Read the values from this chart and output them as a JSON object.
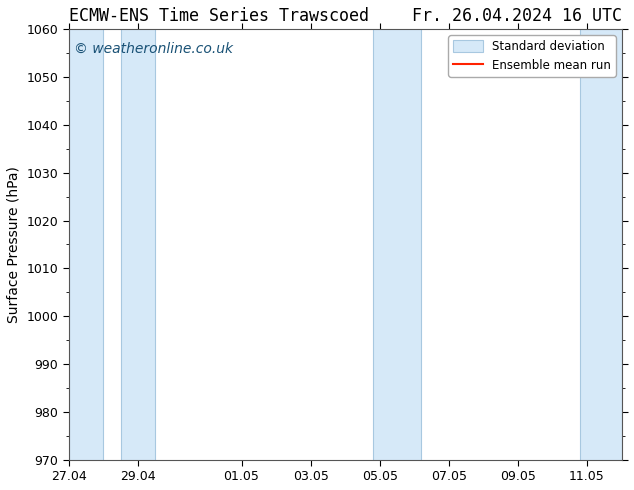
{
  "title_left": "ECMW-ENS Time Series Trawscoed",
  "title_right": "Fr. 26.04.2024 16 UTC",
  "ylabel": "Surface Pressure (hPa)",
  "ylim": [
    970,
    1060
  ],
  "yticks": [
    970,
    980,
    990,
    1000,
    1010,
    1020,
    1030,
    1040,
    1050,
    1060
  ],
  "xtick_labels": [
    "27.04",
    "29.04",
    "01.05",
    "03.05",
    "05.05",
    "07.05",
    "09.05",
    "11.05"
  ],
  "watermark": "© weatheronline.co.uk",
  "watermark_color": "#1a5276",
  "bg_color": "#ffffff",
  "plot_bg_color": "#ffffff",
  "shade_color": "#d6e9f8",
  "shade_edge_color": "#a8c8e0",
  "legend_std_label": "Standard deviation",
  "legend_mean_label": "Ensemble mean run",
  "legend_mean_color": "#ff2200",
  "title_fontsize": 12,
  "axis_fontsize": 10,
  "tick_fontsize": 9,
  "watermark_fontsize": 10
}
